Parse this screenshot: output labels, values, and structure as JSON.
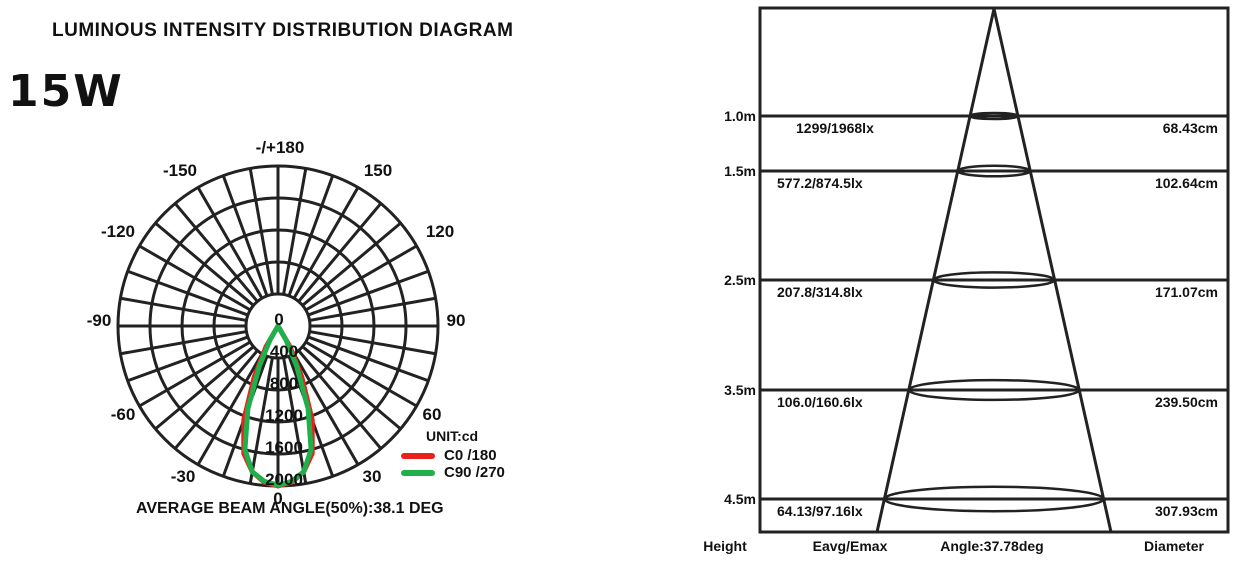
{
  "header": {
    "title": "LUMINOUS INTENSITY DISTRIBUTION DIAGRAM",
    "wattage": "15W"
  },
  "polar": {
    "angle_labels": {
      "top": "-/+180",
      "n150": "-150",
      "p150": "150",
      "n120": "-120",
      "p120": "120",
      "n90": "-90",
      "p90": "90",
      "n60": "-60",
      "p60": "60",
      "n30": "-30",
      "p30": "30",
      "bottom": "0"
    },
    "ring_labels": [
      "0",
      "400",
      "800",
      "1200",
      "1600",
      "2000"
    ],
    "unit_label": "UNIT:cd",
    "legend": [
      {
        "label": "C0  /180",
        "color": "#e8221a"
      },
      {
        "label": "C90 /270",
        "color": "#1fb04b"
      }
    ],
    "beam_text": "AVERAGE BEAM ANGLE(50%):38.1 DEG"
  },
  "chart_data": {
    "type": "line",
    "title": "LUMINOUS INTENSITY DISTRIBUTION DIAGRAM",
    "unit": "cd",
    "polar": true,
    "radial_range": [
      0,
      2000
    ],
    "series": [
      {
        "name": "C0  /180",
        "color": "#e8221a",
        "angles_deg": [
          -40,
          -30,
          -25,
          -20,
          -15,
          -10,
          -5,
          0,
          5,
          10,
          15,
          20,
          25,
          30,
          40
        ],
        "values": [
          0,
          300,
          700,
          1250,
          1650,
          1850,
          1960,
          2000,
          1960,
          1850,
          1650,
          1250,
          700,
          300,
          0
        ]
      },
      {
        "name": "C90 /270",
        "color": "#1fb04b",
        "angles_deg": [
          -40,
          -30,
          -25,
          -20,
          -15,
          -10,
          -5,
          0,
          5,
          10,
          15,
          20,
          25,
          30,
          40
        ],
        "values": [
          0,
          200,
          550,
          1100,
          1600,
          1850,
          1950,
          1990,
          1950,
          1850,
          1600,
          1100,
          550,
          200,
          0
        ]
      }
    ],
    "beam_angle_50pct_deg": 38.1
  },
  "cone": {
    "rows": [
      {
        "height": "1.0m",
        "eavg_emax": "1299/1968lx",
        "diameter": "68.43cm"
      },
      {
        "height": "1.5m",
        "eavg_emax": "577.2/874.5lx",
        "diameter": "102.64cm"
      },
      {
        "height": "2.5m",
        "eavg_emax": "207.8/314.8lx",
        "diameter": "171.07cm"
      },
      {
        "height": "3.5m",
        "eavg_emax": "106.0/160.6lx",
        "diameter": "239.50cm"
      },
      {
        "height": "4.5m",
        "eavg_emax": "64.13/97.16lx",
        "diameter": "307.93cm"
      }
    ],
    "footer": {
      "height_label": "Height",
      "eavg_label": "Eavg/Emax",
      "angle_label": "Angle:37.78deg",
      "diameter_label": "Diameter"
    }
  }
}
